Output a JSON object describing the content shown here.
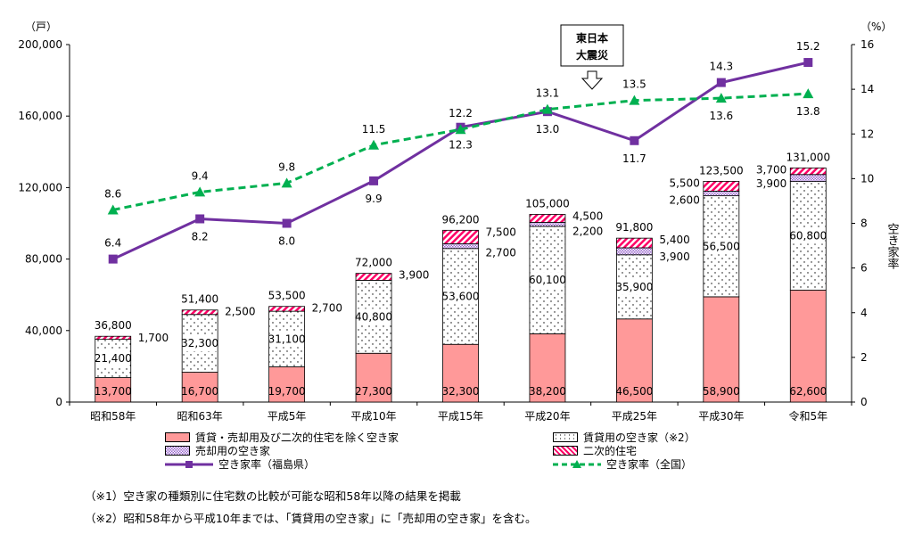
{
  "chart_data": {
    "type": "bar+line",
    "categories": [
      "昭和58年",
      "昭和63年",
      "平成5年",
      "平成10年",
      "平成15年",
      "平成20年",
      "平成25年",
      "平成30年",
      "令和5年"
    ],
    "left_axis": {
      "unit": "（戸）",
      "ylim": [
        0,
        200000
      ],
      "ticks": [
        "0",
        "40,000",
        "80,000",
        "120,000",
        "160,000",
        "200,000"
      ]
    },
    "right_axis": {
      "unit": "（%）",
      "label": "空き家率",
      "ylim": [
        0,
        16
      ],
      "ticks": [
        "0",
        "2",
        "4",
        "6",
        "8",
        "10",
        "12",
        "14",
        "16"
      ]
    },
    "bar_series": [
      {
        "name": "賃貸・売却用及び二次的住宅を除く空き家",
        "color": "#ff9999",
        "pattern": "solid",
        "values": [
          13700,
          16700,
          19700,
          27300,
          32300,
          38200,
          46500,
          58900,
          62600
        ],
        "labels": [
          "13,700",
          "16,700",
          "19,700",
          "27,300",
          "32,300",
          "38,200",
          "46,500",
          "58,900",
          "62,600"
        ]
      },
      {
        "name": "賃貸用の空き家（※2）",
        "color": "#ffffff",
        "pattern": "dots",
        "values": [
          21400,
          32300,
          31100,
          40800,
          53600,
          60100,
          35900,
          56500,
          60800
        ],
        "labels": [
          "21,400",
          "32,300",
          "31,100",
          "40,800",
          "53,600",
          "60,100",
          "35,900",
          "56,500",
          "60,800"
        ]
      },
      {
        "name": "売却用の空き家",
        "color": "#9966cc",
        "pattern": "checker",
        "values": [
          null,
          null,
          null,
          null,
          2700,
          2200,
          3900,
          2600,
          3900
        ],
        "labels": [
          "",
          "",
          "",
          "",
          "2,700",
          "2,200",
          "3,900",
          "2,600",
          "3,900"
        ]
      },
      {
        "name": "二次的住宅",
        "color": "#ff0066",
        "pattern": "hatch",
        "values": [
          1700,
          2500,
          2700,
          3900,
          7500,
          4500,
          5400,
          5500,
          3700
        ],
        "labels": [
          "1,700",
          "2,500",
          "2,700",
          "3,900",
          "7,500",
          "4,500",
          "5,400",
          "5,500",
          "3,700"
        ]
      }
    ],
    "totals": [
      "36,800",
      "51,400",
      "53,500",
      "72,000",
      "96,200",
      "105,000",
      "91,800",
      "123,500",
      "131,000"
    ],
    "line_series": [
      {
        "name": "空き家率（福島県）",
        "color": "#7030a0",
        "marker": "square",
        "values": [
          6.4,
          8.2,
          8.0,
          9.9,
          12.3,
          13.0,
          11.7,
          14.3,
          15.2
        ]
      },
      {
        "name": "空き家率（全国）",
        "color": "#00b050",
        "marker": "triangle",
        "dash": true,
        "values": [
          8.6,
          9.4,
          9.8,
          11.5,
          12.2,
          13.1,
          13.5,
          13.6,
          13.8
        ]
      }
    ],
    "annotation": {
      "text": [
        "東日本",
        "大震災"
      ],
      "category": "平成20年"
    },
    "legend_position": "bottom"
  },
  "notes": [
    "（※1）空き家の種類別に住宅数の比較が可能な昭和58年以降の結果を掲載",
    "（※2）昭和58年から平成10年までは、「賃貸用の空き家」に「売却用の空き家」を含む。"
  ]
}
